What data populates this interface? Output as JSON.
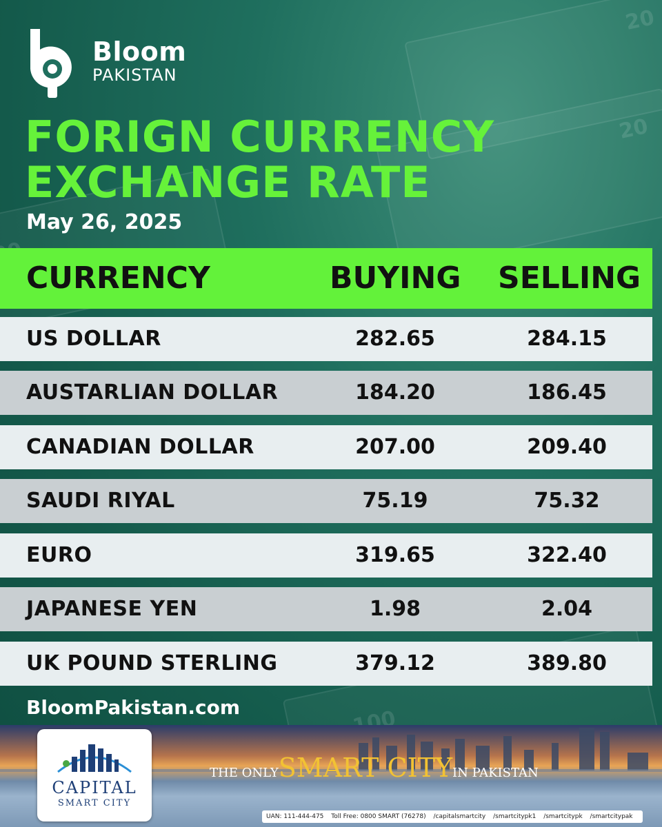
{
  "brand": {
    "name": "Bloom",
    "sub": "PAKISTAN"
  },
  "title": {
    "line1": "FORIGN CURRENCY",
    "line2": "EXCHANGE RATE"
  },
  "date": "May 26, 2025",
  "table": {
    "headers": {
      "currency": "CURRENCY",
      "buying": "BUYING",
      "selling": "SELLING"
    },
    "rows": [
      {
        "currency": "US DOLLAR",
        "buying": "282.65",
        "selling": "284.15"
      },
      {
        "currency": "AUSTARLIAN DOLLAR",
        "buying": "184.20",
        "selling": "186.45"
      },
      {
        "currency": "CANADIAN DOLLAR",
        "buying": "207.00",
        "selling": "209.40"
      },
      {
        "currency": "SAUDI RIYAL",
        "buying": "75.19",
        "selling": "75.32"
      },
      {
        "currency": "EURO",
        "buying": "319.65",
        "selling": "322.40"
      },
      {
        "currency": "JAPANESE YEN",
        "buying": "1.98",
        "selling": "2.04"
      },
      {
        "currency": "UK POUND STERLING",
        "buying": "379.12",
        "selling": "389.80"
      }
    ],
    "colors": {
      "header": "#63f23a",
      "row_light": "#e8eef0",
      "row_dark": "#c9cfd2"
    }
  },
  "website": "BloomPakistan.com",
  "ad": {
    "company": "CAPITAL",
    "company_sub": "SMART CITY",
    "tagline_pre": "THE ONLY",
    "tagline_main": "SMART CITY",
    "tagline_post": "IN PAKISTAN",
    "uan": "UAN: 111-444-475",
    "toll_free": "Toll Free: 0800 SMART (76278)",
    "social": [
      "/capitalsmartcity",
      "/smartcitypk1",
      "/smartcitypk",
      "/smartcitypak"
    ]
  },
  "icons": [
    "bloom-logo-icon",
    "capital-smart-city-logo-icon"
  ],
  "colors": {
    "title_green": "#66f23a",
    "background": "#1f6f5e",
    "ad_gold": "#f2c233",
    "ad_blue": "#1e3f77"
  }
}
